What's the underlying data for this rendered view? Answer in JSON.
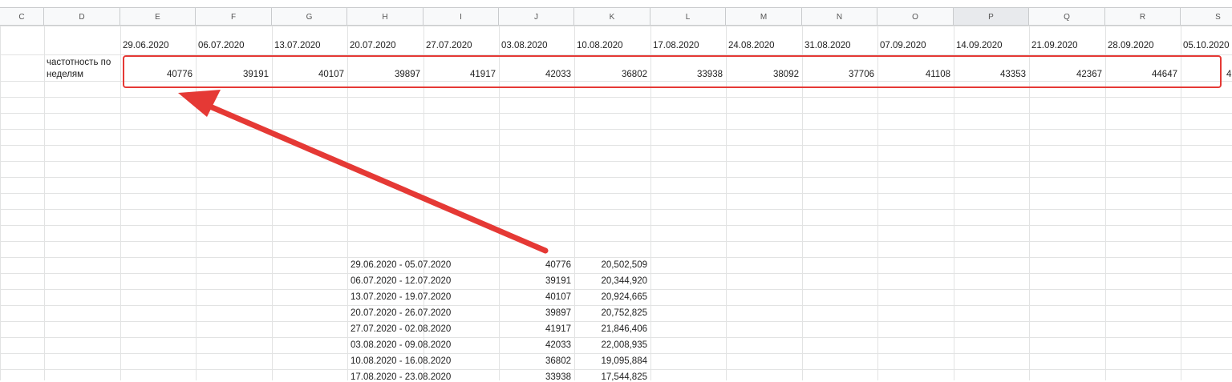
{
  "columns": [
    "C",
    "D",
    "E",
    "F",
    "G",
    "H",
    "I",
    "J",
    "K",
    "L",
    "M",
    "N",
    "O",
    "P",
    "Q",
    "R",
    "S"
  ],
  "selected_column": "P",
  "row_label": "частотность по неделям",
  "row_label_lines": [
    "частотность по",
    "неделям"
  ],
  "week_dates": [
    "29.06.2020",
    "06.07.2020",
    "13.07.2020",
    "20.07.2020",
    "27.07.2020",
    "03.08.2020",
    "10.08.2020",
    "17.08.2020",
    "24.08.2020",
    "31.08.2020",
    "07.09.2020",
    "14.09.2020",
    "21.09.2020",
    "28.09.2020",
    "05.10.2020"
  ],
  "week_values": [
    "40776",
    "39191",
    "40107",
    "39897",
    "41917",
    "42033",
    "36802",
    "33938",
    "38092",
    "37706",
    "41108",
    "43353",
    "42367",
    "44647",
    "4"
  ],
  "table": [
    {
      "range": "29.06.2020 - 05.07.2020",
      "count": "40776",
      "value": "20,502,509"
    },
    {
      "range": "06.07.2020 - 12.07.2020",
      "count": "39191",
      "value": "20,344,920"
    },
    {
      "range": "13.07.2020 - 19.07.2020",
      "count": "40107",
      "value": "20,924,665"
    },
    {
      "range": "20.07.2020 - 26.07.2020",
      "count": "39897",
      "value": "20,752,825"
    },
    {
      "range": "27.07.2020 - 02.08.2020",
      "count": "41917",
      "value": "21,846,406"
    },
    {
      "range": "03.08.2020 - 09.08.2020",
      "count": "42033",
      "value": "22,008,935"
    },
    {
      "range": "10.08.2020 - 16.08.2020",
      "count": "36802",
      "value": "19,095,884"
    },
    {
      "range": "17.08.2020 - 23.08.2020",
      "count": "33938",
      "value": "17,544,825"
    }
  ],
  "annotation_color": "#e53935"
}
